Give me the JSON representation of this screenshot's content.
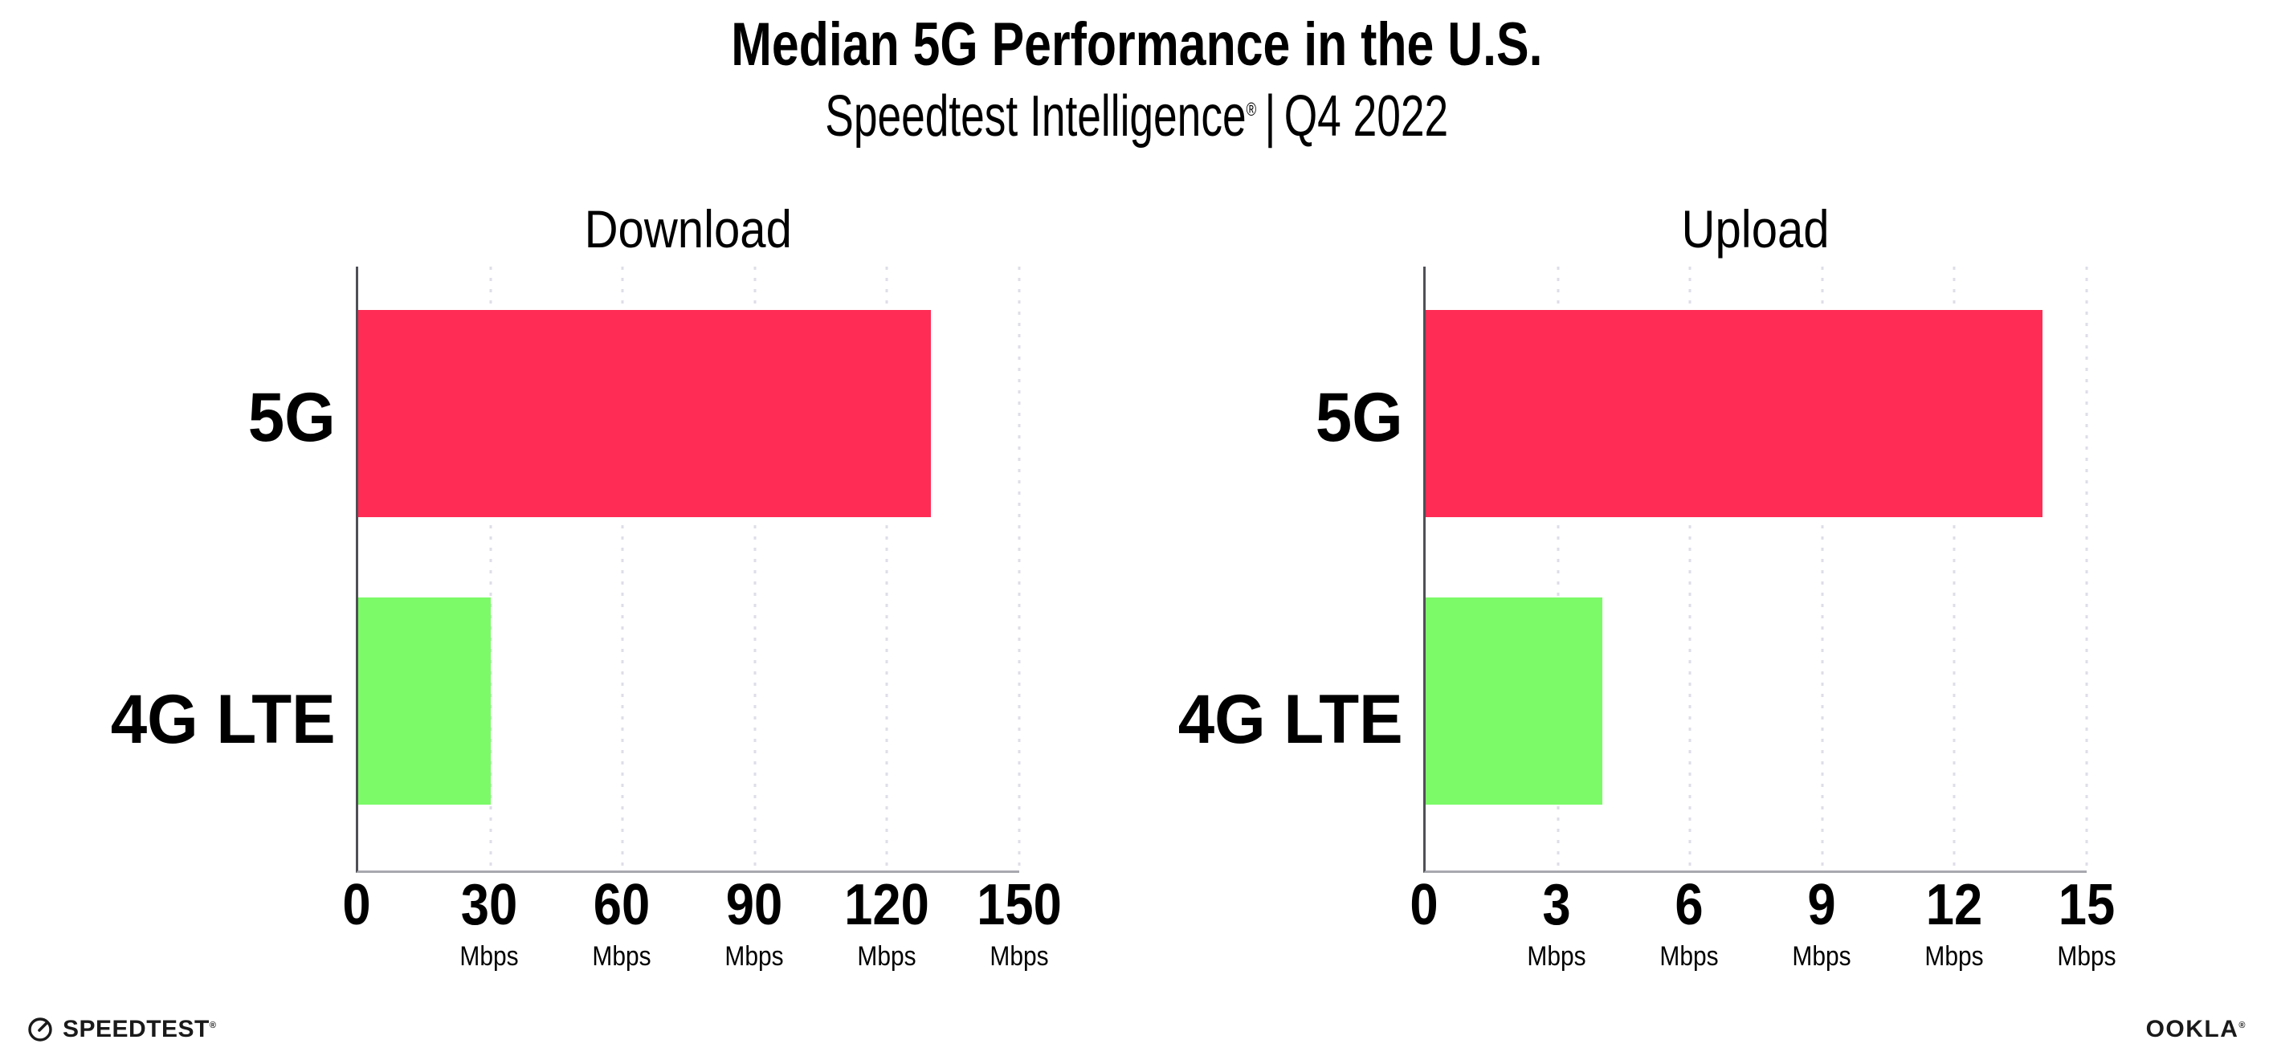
{
  "header": {
    "title": "Median 5G Performance in the U.S.",
    "subtitle": {
      "brand": "Speedtest Intelligence",
      "trademark": "®",
      "divider": "|",
      "period": "Q4 2022"
    }
  },
  "chart_data": [
    {
      "type": "bar",
      "orientation": "horizontal",
      "title": "Download",
      "categories": [
        "5G",
        "4G LTE"
      ],
      "values": [
        130,
        30
      ],
      "unit": "Mbps",
      "xlabel": "",
      "ylabel": "",
      "xlim": [
        0,
        150
      ],
      "xticks": [
        0,
        30,
        60,
        90,
        120,
        150
      ],
      "series_colors": [
        "#FF2D55",
        "#7CFA68"
      ],
      "grid": "vertical dotted gridlines at each tick",
      "legend_position": "none"
    },
    {
      "type": "bar",
      "orientation": "horizontal",
      "title": "Upload",
      "categories": [
        "5G",
        "4G LTE"
      ],
      "values": [
        14,
        4
      ],
      "unit": "Mbps",
      "xlabel": "",
      "ylabel": "",
      "xlim": [
        0,
        15
      ],
      "xticks": [
        0,
        3,
        6,
        9,
        12,
        15
      ],
      "series_colors": [
        "#FF2D55",
        "#7CFA68"
      ],
      "grid": "vertical dotted gridlines at each tick",
      "legend_position": "none"
    }
  ],
  "colors": {
    "bar_5g": "#FF2D55",
    "bar_4g_lte": "#7CFA68",
    "gridline": "#DEDEE8",
    "y_axis_line": "#4F4F57",
    "x_axis_line": "#A8A8B0",
    "text": "#000000",
    "background": "#FFFFFF"
  },
  "footer": {
    "speedtest": {
      "icon": "gauge-icon",
      "label": "SPEEDTEST",
      "trademark": "®"
    },
    "ookla": {
      "label": "OOKLA",
      "trademark": "®"
    }
  }
}
